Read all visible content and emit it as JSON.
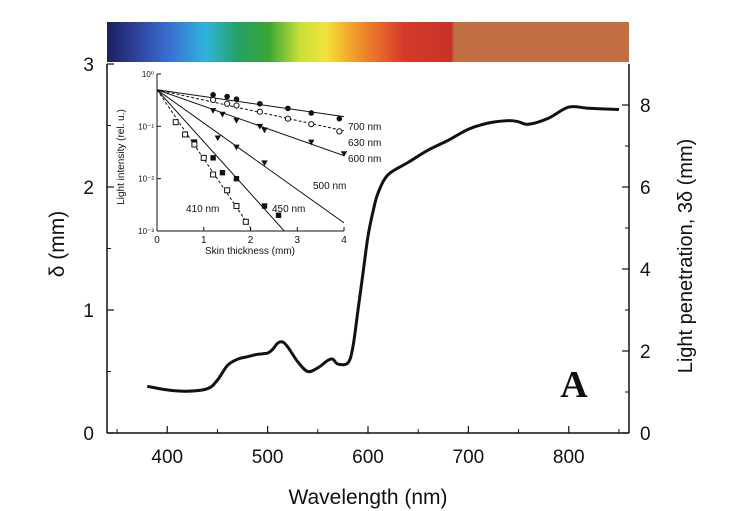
{
  "chart_data": {
    "type": "line",
    "x": [
      380,
      400,
      420,
      440,
      450,
      460,
      470,
      480,
      490,
      500,
      505,
      510,
      515,
      520,
      530,
      540,
      550,
      560,
      565,
      570,
      580,
      585,
      590,
      595,
      600,
      605,
      610,
      620,
      640,
      660,
      680,
      700,
      720,
      740,
      750,
      760,
      780,
      800,
      820,
      850
    ],
    "y": [
      0.38,
      0.35,
      0.34,
      0.36,
      0.43,
      0.55,
      0.6,
      0.62,
      0.64,
      0.65,
      0.68,
      0.73,
      0.74,
      0.7,
      0.58,
      0.5,
      0.53,
      0.59,
      0.6,
      0.56,
      0.57,
      0.7,
      1.0,
      1.3,
      1.6,
      1.8,
      1.95,
      2.1,
      2.2,
      2.3,
      2.38,
      2.47,
      2.52,
      2.54,
      2.53,
      2.51,
      2.56,
      2.65,
      2.64,
      2.63
    ],
    "xlabel": "Wavelength (nm)",
    "xlim": [
      340,
      860
    ],
    "xticks": [
      "400",
      "500",
      "600",
      "700",
      "800"
    ],
    "ylabel": "δ (mm)",
    "ylim": [
      0,
      3
    ],
    "yticks": [
      "0",
      "1",
      "2",
      "3"
    ],
    "y2label": "Light penetration, 3δ (mm)",
    "y2lim": [
      0,
      9
    ],
    "y2ticks": [
      "0",
      "2",
      "4",
      "6",
      "8"
    ],
    "panel_label": "A",
    "spectrum_bar": true,
    "inset": {
      "type": "scatter",
      "xlabel": "Skin thickness (mm)",
      "ylabel": "Light intensity (rel. u.)",
      "xlim": [
        0,
        4
      ],
      "xticks": [
        "0",
        "1",
        "2",
        "3",
        "4"
      ],
      "yscale": "log",
      "ylim": [
        0.001,
        1
      ],
      "yticks": [
        "10⁻³",
        "10⁻²",
        "10⁻¹",
        "10⁰"
      ],
      "series": [
        {
          "name": "700 nm",
          "marker": "filled-circle",
          "x": [
            1.2,
            1.5,
            1.7,
            2.2,
            2.8,
            3.3,
            3.9
          ],
          "y": [
            0.4,
            0.37,
            0.33,
            0.27,
            0.22,
            0.18,
            0.14
          ]
        },
        {
          "name": "630 nm",
          "marker": "open-circle",
          "x": [
            1.2,
            1.5,
            1.7,
            2.2,
            2.8,
            3.3,
            3.9
          ],
          "y": [
            0.32,
            0.27,
            0.25,
            0.19,
            0.14,
            0.11,
            0.08
          ]
        },
        {
          "name": "600 nm",
          "marker": "filled-triangle",
          "x": [
            1.2,
            1.4,
            1.7,
            2.2,
            2.3,
            3.3,
            4.0
          ],
          "y": [
            0.2,
            0.17,
            0.13,
            0.1,
            0.085,
            0.05,
            0.03
          ]
        },
        {
          "name": "500 nm",
          "marker": "filled-triangle",
          "x": [
            1.3,
            1.7,
            2.3
          ],
          "y": [
            0.06,
            0.04,
            0.02
          ]
        },
        {
          "name": "450 nm",
          "marker": "filled-square",
          "x": [
            0.8,
            1.2,
            1.4,
            1.7,
            2.3,
            2.6
          ],
          "y": [
            0.05,
            0.025,
            0.013,
            0.01,
            0.003,
            0.002
          ]
        },
        {
          "name": "410 nm",
          "marker": "open-square",
          "x": [
            0.4,
            0.6,
            0.8,
            1.0,
            1.2,
            1.5,
            1.7,
            1.9
          ],
          "y": [
            0.12,
            0.07,
            0.045,
            0.025,
            0.012,
            0.006,
            0.003,
            0.0015
          ]
        }
      ]
    }
  }
}
